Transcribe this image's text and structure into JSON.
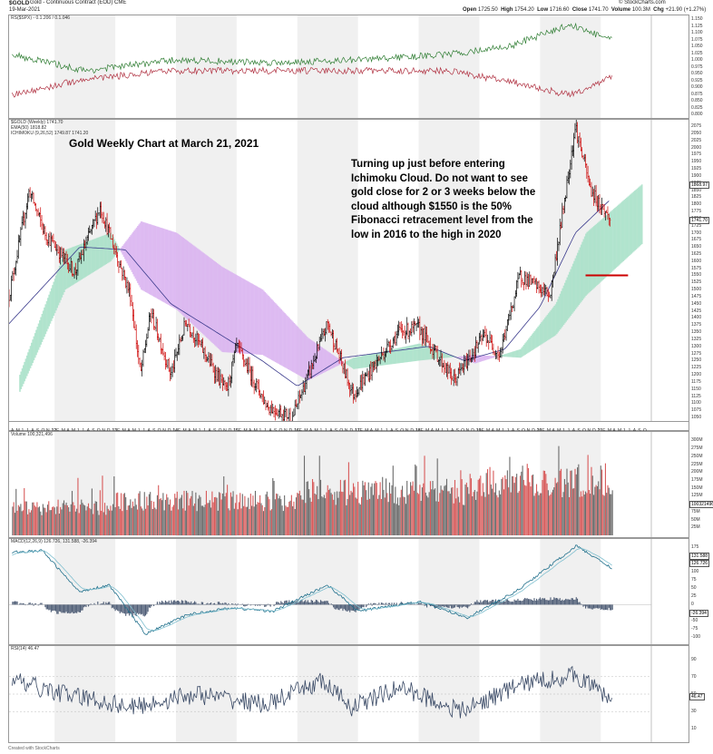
{
  "header": {
    "symbol": "$GOLD",
    "name": "Gold - Continuous Contract (EOD) CME",
    "date": "19-Mar-2021",
    "open_label": "Open",
    "open": "1725.50",
    "high_label": "High",
    "high": "1754.20",
    "low_label": "Low",
    "low": "1716.60",
    "close_label": "Close",
    "close": "1741.70",
    "volume_label": "Volume",
    "volume": "100.3M",
    "chg_label": "Chg",
    "chg": "+21.90 (+1.27%)",
    "source": "© StockCharts.com"
  },
  "rs_panel": {
    "legend": "RS($SPX) - 0.1.206 / 0.1.046",
    "ticks": [
      "1.150",
      "1.125",
      "1.100",
      "1.075",
      "1.050",
      "1.025",
      "1.000",
      "0.975",
      "0.950",
      "0.925",
      "0.900",
      "0.875",
      "0.850",
      "0.825",
      "0.800"
    ]
  },
  "price_panel": {
    "legend_1": "$GOLD (Weekly) 1741.70",
    "legend_2": "EMA(50) 1818.82",
    "legend_3": "ICHIMOKU (9,26,52) 1749.87 1741.20",
    "title": "Gold Weekly Chart at March 21, 2021",
    "annotation": "Turning up just before entering Ichimoku Cloud.  Do not want to see gold close for 2 or 3 weeks below the cloud although $1550 is the 50% Fibonacci retracement level from the low in 2016 to the high in 2020",
    "ticks": [
      "2075",
      "2050",
      "2025",
      "2000",
      "1975",
      "1950",
      "1925",
      "1900",
      "1875",
      "1850",
      "1825",
      "1800",
      "1775",
      "1750",
      "1725",
      "1700",
      "1675",
      "1650",
      "1625",
      "1600",
      "1575",
      "1550",
      "1525",
      "1500",
      "1475",
      "1450",
      "1425",
      "1400",
      "1375",
      "1350",
      "1325",
      "1300",
      "1275",
      "1250",
      "1225",
      "1200",
      "1175",
      "1150",
      "1125",
      "1100",
      "1075",
      "1050"
    ],
    "tag_1": "1868.97",
    "tag_2": "1741.70"
  },
  "time_axis": {
    "labels": [
      "A",
      "M",
      "J",
      "J",
      "A",
      "S",
      "O",
      "N",
      "2012",
      "F",
      "M",
      "A",
      "M",
      "J",
      "J",
      "A",
      "S",
      "O",
      "N",
      "D",
      "2013",
      "F",
      "M",
      "A",
      "M",
      "J",
      "J",
      "A",
      "S",
      "O",
      "N",
      "D",
      "2014",
      "F",
      "M",
      "A",
      "M",
      "J",
      "J",
      "A",
      "S",
      "O",
      "N",
      "D",
      "2015",
      "F",
      "M",
      "A",
      "M",
      "J",
      "J",
      "A",
      "S",
      "O",
      "N",
      "D",
      "2016",
      "F",
      "M",
      "A",
      "M",
      "J",
      "J",
      "A",
      "S",
      "O",
      "N",
      "D",
      "2017",
      "F",
      "M",
      "A",
      "M",
      "J",
      "J",
      "A",
      "S",
      "O",
      "N",
      "D",
      "2018",
      "F",
      "M",
      "A",
      "M",
      "J",
      "J",
      "A",
      "S",
      "O",
      "N",
      "D",
      "2019",
      "F",
      "M",
      "A",
      "M",
      "J",
      "J",
      "A",
      "S",
      "O",
      "N",
      "D",
      "2020",
      "F",
      "M",
      "A",
      "M",
      "J",
      "J",
      "A",
      "S",
      "O",
      "N",
      "D",
      "2021",
      "F",
      "M",
      "A",
      "M",
      "J",
      "J",
      "A",
      "S",
      "O"
    ]
  },
  "volume_panel": {
    "legend": "Volume 100,321,496",
    "ticks": [
      "300M",
      "275M",
      "250M",
      "225M",
      "200M",
      "175M",
      "150M",
      "125M",
      "100M",
      "75M",
      "50M",
      "25M"
    ],
    "tag": "100321496"
  },
  "macd_panel": {
    "legend": "MACD(12,26,9) 126.726, 131.588, -26.394",
    "ticks": [
      "175",
      "150",
      "125",
      "100",
      "75",
      "50",
      "25",
      "0",
      "-25",
      "-50",
      "-75",
      "-100"
    ],
    "tag_1": "126.726",
    "tag_2": "131.588",
    "tag_3": "-26.394"
  },
  "rsi_panel": {
    "legend": "RSI(14) 46.47",
    "ticks": [
      "90",
      "70",
      "50",
      "30",
      "10"
    ],
    "tag": "46.47"
  },
  "footer": "Created with StockCharts",
  "colors": {
    "up": "#000000",
    "down": "#cc0000",
    "cloud_bull": "#a8e0c8",
    "cloud_bear": "#d9b3f0",
    "ema": "#3a3a8c",
    "volume_up": "#6b6b6b",
    "volume_down": "#d85a5a",
    "macd": "#1f6f8b",
    "signal": "#7fbfcf",
    "rs_green": "#2e7d32",
    "rs_red": "#b03040",
    "fib_line": "#cc0000"
  },
  "chart_data": {
    "type": "line",
    "title": "Gold Weekly Chart at March 21, 2021",
    "x_range": [
      "2011-04",
      "2021-10"
    ],
    "series": [
      {
        "name": "$GOLD (Weekly)",
        "x": [
          "2011-04",
          "2011-08",
          "2011-11",
          "2012-05",
          "2012-10",
          "2013-04",
          "2013-06",
          "2013-08",
          "2013-12",
          "2014-03",
          "2014-11",
          "2015-01",
          "2015-07",
          "2015-12",
          "2016-07",
          "2016-12",
          "2017-09",
          "2018-01",
          "2018-08",
          "2019-02",
          "2019-05",
          "2019-09",
          "2020-03",
          "2020-08",
          "2020-11",
          "2021-03"
        ],
        "values": [
          1480,
          1850,
          1700,
          1560,
          1790,
          1480,
          1200,
          1420,
          1200,
          1390,
          1140,
          1300,
          1090,
          1050,
          1380,
          1130,
          1350,
          1365,
          1180,
          1340,
          1270,
          1550,
          1480,
          2075,
          1850,
          1741.7
        ]
      },
      {
        "name": "EMA(50)",
        "x": [
          "2011-04",
          "2012-06",
          "2013-03",
          "2013-12",
          "2015-06",
          "2016-01",
          "2016-10",
          "2018-03",
          "2018-10",
          "2019-06",
          "2020-01",
          "2020-08",
          "2021-03"
        ],
        "values": [
          1380,
          1650,
          1640,
          1450,
          1250,
          1160,
          1260,
          1300,
          1250,
          1290,
          1440,
          1700,
          1818.82
        ]
      },
      {
        "name": "Ichimoku span A",
        "x": [
          "2011-06",
          "2012-03",
          "2012-12",
          "2013-06",
          "2014-01",
          "2014-10",
          "2015-06",
          "2016-03",
          "2016-12",
          "2018-01",
          "2018-12",
          "2019-09",
          "2020-04",
          "2020-10",
          "2021-09"
        ],
        "values": [
          1200,
          1640,
          1700,
          1500,
          1430,
          1280,
          1270,
          1180,
          1260,
          1310,
          1240,
          1290,
          1450,
          1700,
          1870
        ]
      },
      {
        "name": "Ichimoku span B",
        "x": [
          "2011-06",
          "2012-03",
          "2012-12",
          "2013-06",
          "2014-01",
          "2014-10",
          "2015-06",
          "2016-03",
          "2016-12",
          "2018-01",
          "2018-12",
          "2019-09",
          "2020-04",
          "2020-10",
          "2021-09"
        ],
        "values": [
          1140,
          1500,
          1600,
          1740,
          1700,
          1580,
          1500,
          1330,
          1220,
          1250,
          1270,
          1260,
          1340,
          1480,
          1660
        ]
      }
    ],
    "hline": {
      "value": 1550,
      "color": "#cc0000"
    },
    "ylim": [
      1050,
      2085
    ]
  }
}
